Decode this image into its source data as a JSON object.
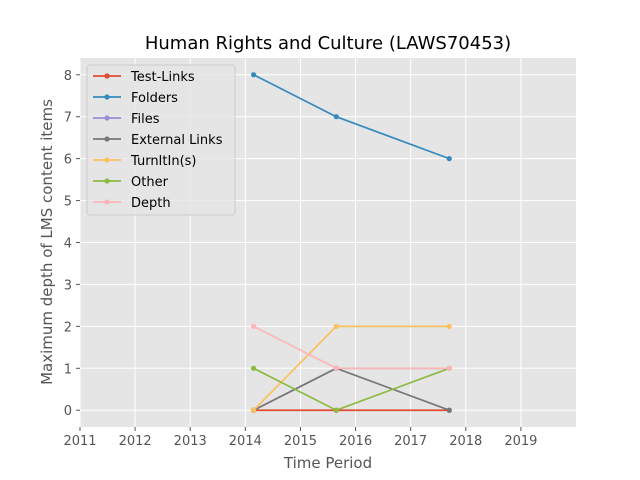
{
  "chart_data": {
    "type": "line",
    "title": "Human Rights and Culture (LAWS70453)",
    "xlabel": "Time Period",
    "ylabel": "Maximum depth of LMS content items",
    "xlim": [
      2011,
      2020
    ],
    "ylim": [
      -0.4,
      8.4
    ],
    "xticks": [
      "2011",
      "2012",
      "2013",
      "2014",
      "2015",
      "2016",
      "2017",
      "2018",
      "2019"
    ],
    "yticks": [
      "0",
      "1",
      "2",
      "3",
      "4",
      "5",
      "6",
      "7",
      "8"
    ],
    "grid": true,
    "legend_position": "top-left",
    "x": [
      2014.15,
      2015.65,
      2017.7
    ],
    "series": [
      {
        "name": "Test-Links",
        "color": "#E24A33",
        "values": [
          0,
          0,
          0
        ]
      },
      {
        "name": "Folders",
        "color": "#348ABD",
        "values": [
          8,
          7,
          6
        ]
      },
      {
        "name": "Files",
        "color": "#988ED5",
        "values": [
          0,
          1,
          1
        ]
      },
      {
        "name": "External Links",
        "color": "#777777",
        "values": [
          0,
          1,
          0
        ]
      },
      {
        "name": "TurnItIn(s)",
        "color": "#FBC15E",
        "values": [
          0,
          2,
          2
        ]
      },
      {
        "name": "Other",
        "color": "#8EBA42",
        "values": [
          1,
          0,
          1
        ]
      },
      {
        "name": "Depth",
        "color": "#FFB5B8",
        "values": [
          2,
          1,
          1
        ]
      }
    ]
  }
}
